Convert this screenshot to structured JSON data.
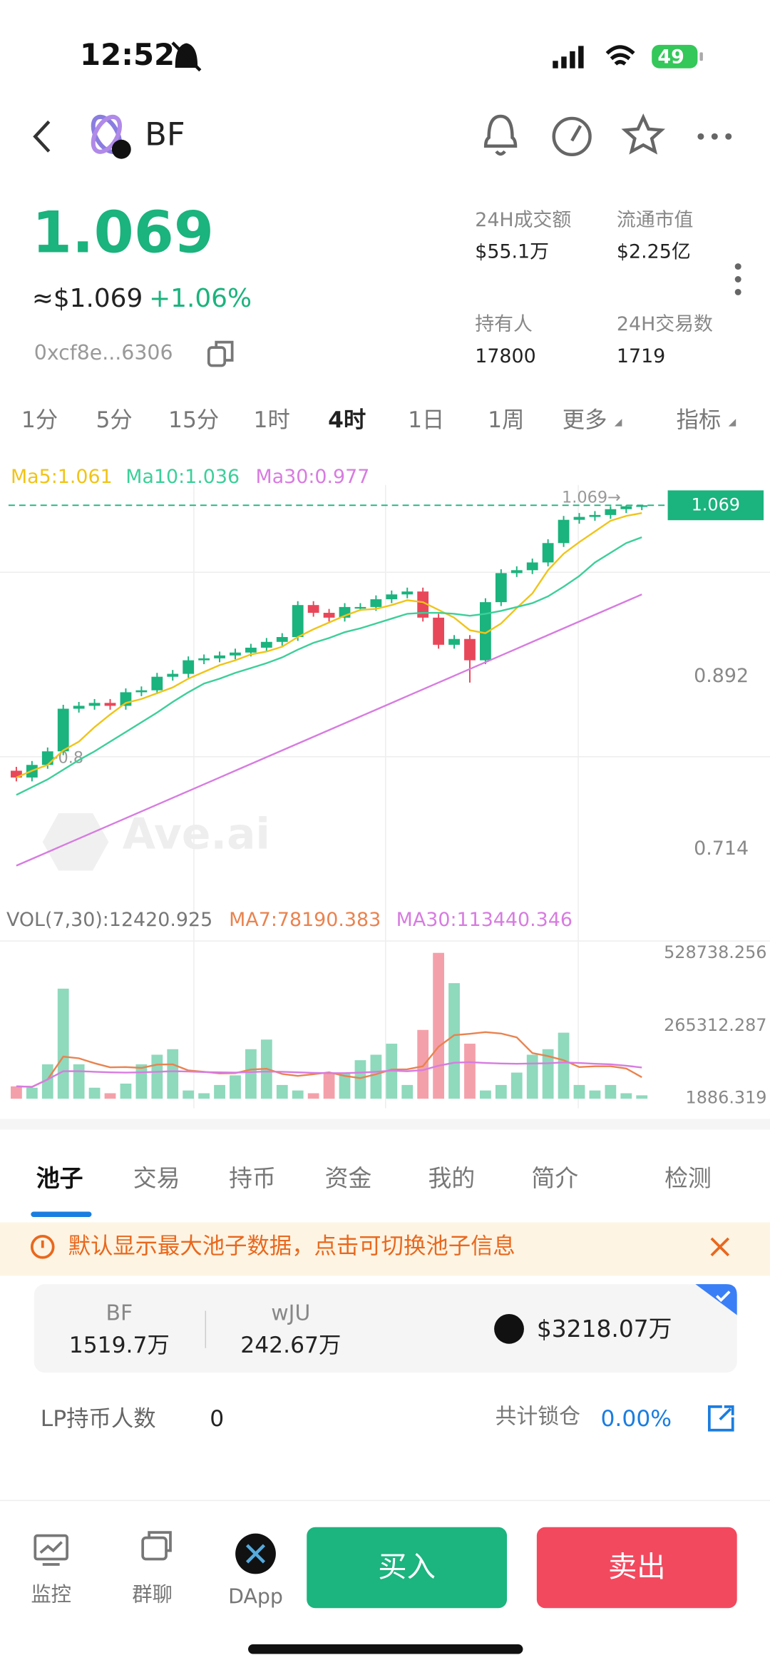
{
  "status_bar": {
    "time": "12:52",
    "battery": "49"
  },
  "header": {
    "title": "BF"
  },
  "price": {
    "value": "1.069",
    "usd": "≈$1.069",
    "change": "+1.06%",
    "address": "0xcf8e...6306"
  },
  "stats": [
    {
      "label": "24H成交额",
      "value": "$55.1万"
    },
    {
      "label": "流通市值",
      "value": "$2.25亿"
    },
    {
      "label": "持有人",
      "value": "17800"
    },
    {
      "label": "24H交易数",
      "value": "1719"
    }
  ],
  "intervals": [
    "1分",
    "5分",
    "15分",
    "1时",
    "4时",
    "1日",
    "1周",
    "更多",
    "指标"
  ],
  "chart_data": [
    {
      "type": "candlestick",
      "up_color": "#1bb37e",
      "down_color": "#e8475a",
      "open": [
        0.795,
        0.788,
        0.801,
        0.815,
        0.859,
        0.862,
        0.865,
        0.862,
        0.876,
        0.878,
        0.892,
        0.895,
        0.909,
        0.911,
        0.914,
        0.917,
        0.922,
        0.928,
        0.933,
        0.966,
        0.958,
        0.953,
        0.964,
        0.964,
        0.972,
        0.977,
        0.98,
        0.953,
        0.925,
        0.931,
        0.909,
        0.969,
        0.999,
        1.002,
        1.01,
        1.03,
        1.054,
        1.057,
        1.059,
        1.065,
        1.068
      ],
      "high": [
        0.799,
        0.805,
        0.819,
        0.863,
        0.866,
        0.869,
        0.869,
        0.88,
        0.882,
        0.896,
        0.899,
        0.913,
        0.915,
        0.918,
        0.921,
        0.926,
        0.932,
        0.937,
        0.97,
        0.97,
        0.962,
        0.968,
        0.968,
        0.976,
        0.981,
        0.984,
        0.984,
        0.957,
        0.935,
        0.935,
        0.973,
        1.003,
        1.006,
        1.014,
        1.034,
        1.058,
        1.061,
        1.063,
        1.068,
        1.069,
        1.069
      ],
      "low": [
        0.784,
        0.784,
        0.797,
        0.811,
        0.855,
        0.858,
        0.858,
        0.858,
        0.872,
        0.874,
        0.888,
        0.891,
        0.905,
        0.907,
        0.91,
        0.913,
        0.918,
        0.924,
        0.929,
        0.954,
        0.949,
        0.949,
        0.96,
        0.96,
        0.968,
        0.973,
        0.949,
        0.921,
        0.921,
        0.886,
        0.905,
        0.965,
        0.995,
        0.998,
        1.006,
        1.026,
        1.05,
        1.053,
        1.055,
        1.061,
        1.064
      ],
      "close": [
        0.788,
        0.801,
        0.815,
        0.859,
        0.862,
        0.865,
        0.862,
        0.876,
        0.878,
        0.892,
        0.895,
        0.909,
        0.911,
        0.914,
        0.917,
        0.922,
        0.928,
        0.933,
        0.966,
        0.958,
        0.953,
        0.964,
        0.964,
        0.972,
        0.977,
        0.98,
        0.953,
        0.925,
        0.931,
        0.909,
        0.969,
        0.999,
        1.002,
        1.01,
        1.03,
        1.054,
        1.057,
        1.059,
        1.065,
        1.068,
        1.069
      ],
      "series": [
        {
          "label": "Ma5:1.061",
          "color": "#f0c419",
          "values": [
            0.788,
            0.795,
            0.801,
            0.816,
            0.825,
            0.84,
            0.853,
            0.865,
            0.869,
            0.875,
            0.881,
            0.89,
            0.897,
            0.904,
            0.909,
            0.915,
            0.918,
            0.923,
            0.933,
            0.941,
            0.948,
            0.955,
            0.961,
            0.962,
            0.966,
            0.971,
            0.969,
            0.961,
            0.953,
            0.94,
            0.937,
            0.947,
            0.963,
            0.978,
            1.002,
            1.019,
            1.031,
            1.042,
            1.053,
            1.058,
            1.061
          ]
        },
        {
          "label": "Ma10:1.036",
          "color": "#3ccf9a",
          "values": [
            0.77,
            0.778,
            0.786,
            0.796,
            0.806,
            0.815,
            0.825,
            0.835,
            0.845,
            0.855,
            0.866,
            0.876,
            0.885,
            0.89,
            0.896,
            0.901,
            0.906,
            0.912,
            0.92,
            0.927,
            0.932,
            0.938,
            0.942,
            0.947,
            0.952,
            0.957,
            0.958,
            0.958,
            0.957,
            0.955,
            0.957,
            0.96,
            0.964,
            0.968,
            0.975,
            0.985,
            0.996,
            1.01,
            1.02,
            1.03,
            1.036
          ]
        },
        {
          "label": "Ma30:0.977",
          "color": "#d77ce0",
          "values": [
            0.697,
            0.704,
            0.711,
            0.718,
            0.725,
            0.732,
            0.739,
            0.746,
            0.753,
            0.76,
            0.767,
            0.774,
            0.781,
            0.788,
            0.795,
            0.802,
            0.809,
            0.816,
            0.823,
            0.83,
            0.837,
            0.844,
            0.851,
            0.858,
            0.865,
            0.872,
            0.879,
            0.886,
            0.893,
            0.9,
            0.907,
            0.914,
            0.921,
            0.928,
            0.935,
            0.942,
            0.949,
            0.956,
            0.963,
            0.97,
            0.977
          ]
        }
      ],
      "ylim": [
        0.672,
        1.09
      ],
      "yticks": [
        0.892,
        0.714
      ],
      "last_price": 1.069,
      "annotations": [
        {
          "value": 1.069,
          "label": "1.069→"
        },
        {
          "value": 0.8,
          "label": "←0.8"
        }
      ],
      "watermark": "Ave.ai"
    },
    {
      "type": "bar",
      "label": "VOL(7,30):12420.925",
      "up_color": "#8fd9bd",
      "down_color": "#f4a0aa",
      "values": [
        45000,
        40000,
        125000,
        400000,
        125000,
        40000,
        20000,
        55000,
        125000,
        160000,
        180000,
        30000,
        20000,
        50000,
        85000,
        180000,
        215000,
        50000,
        30000,
        20000,
        95000,
        95000,
        140000,
        160000,
        200000,
        50000,
        250000,
        530000,
        420000,
        200000,
        30000,
        50000,
        95000,
        160000,
        180000,
        240000,
        50000,
        30000,
        50000,
        20000,
        12420.925
      ],
      "series": [
        {
          "label": "MA7:78190.383",
          "color": "#e9834f",
          "values": [
            45000,
            43000,
            70000,
            153000,
            147000,
            129000,
            114000,
            115000,
            112000,
            124000,
            125000,
            103000,
            98000,
            92000,
            93000,
            106000,
            109000,
            90000,
            83000,
            89000,
            96000,
            83000,
            75000,
            89000,
            106000,
            107000,
            118000,
            189000,
            231000,
            236000,
            242000,
            237000,
            223000,
            166000,
            155000,
            140000,
            115000,
            118000,
            118000,
            110000,
            78190.383
          ]
        },
        {
          "label": "MA30:113440.346",
          "color": "#d77ce0",
          "values": [
            45000,
            43000,
            70000,
            100000,
            100000,
            98000,
            96000,
            95000,
            96000,
            98000,
            100000,
            99000,
            97000,
            96000,
            95000,
            97000,
            99000,
            98000,
            96000,
            94000,
            93000,
            93000,
            95000,
            98000,
            102000,
            100000,
            104000,
            120000,
            131000,
            133000,
            130000,
            128000,
            127000,
            128000,
            129000,
            132000,
            130000,
            127000,
            125000,
            120000,
            113440.346
          ]
        }
      ],
      "ylim": [
        0,
        573000
      ],
      "yticks": [
        528738.256,
        265312.287,
        1886.319
      ]
    }
  ],
  "tabs": [
    "池子",
    "交易",
    "持币",
    "资金",
    "我的",
    "简介",
    "检测"
  ],
  "notice": "默认显示最大池子数据，点击可切换池子信息",
  "pool": {
    "token_a": "BF",
    "amount_a": "1519.7万",
    "token_b": "wJU",
    "amount_b": "242.67万",
    "liquidity": "$3218.07万",
    "lp_holders_label": "LP持币人数",
    "lp_holders": "0",
    "locked_label": "共计锁仓",
    "locked": "0.00%"
  },
  "nav": [
    "监控",
    "群聊",
    "DApp"
  ],
  "buy": "买入",
  "sell": "卖出"
}
